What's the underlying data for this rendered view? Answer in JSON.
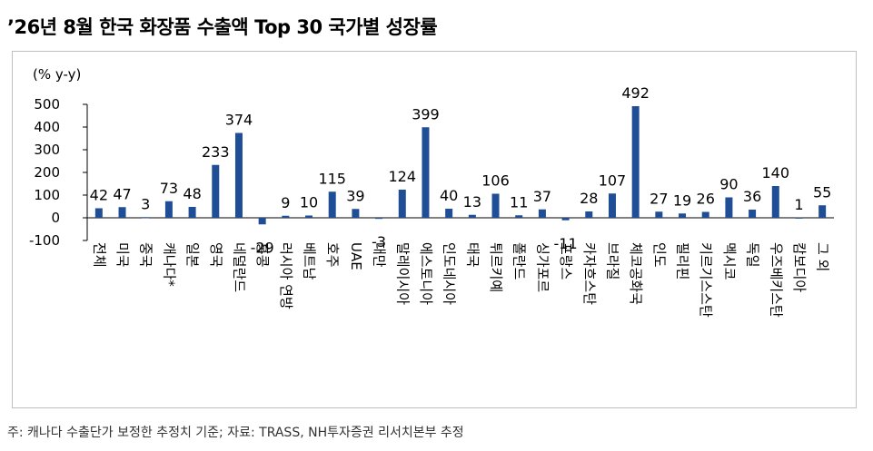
{
  "title": "’26년 8월 한국 화장품 수출액 Top 30 국가별 성장률",
  "footnote": "주: 캐나다 수출단가 보정한 추정치 기준; 자료: TRASS, NH투자증권 리서치본부 추정",
  "colors": {
    "bar": "#1f4e96",
    "frame": "#bfbfbf",
    "axis": "#000000"
  },
  "chart_data": {
    "type": "bar",
    "title": "’26년 8월 한국 화장품 수출액 Top 30 국가별 성장률",
    "ylabel": "(% y-y)",
    "xlabel": "",
    "ylim": [
      -100,
      500
    ],
    "yticks": [
      500,
      400,
      300,
      200,
      100,
      0,
      -100
    ],
    "grid": false,
    "categories": [
      "전체",
      "미국",
      "중국",
      "캐나다*",
      "일본",
      "영국",
      "네덜란드",
      "홍콩",
      "러시아 연방",
      "베트남",
      "호주",
      "UAE",
      "대만",
      "말레이시아",
      "에스토니아",
      "인도네시아",
      "태국",
      "튀르키예",
      "폴란드",
      "싱가포르",
      "프랑스",
      "카자흐스탄",
      "브라질",
      "체코공화국",
      "인도",
      "필리핀",
      "키르기스스탄",
      "멕시코",
      "독일",
      "우즈베키스탄",
      "캄보디아",
      "그 외"
    ],
    "values": [
      42,
      47,
      3,
      73,
      48,
      233,
      374,
      -29,
      9,
      10,
      115,
      39,
      -3,
      124,
      399,
      40,
      13,
      106,
      11,
      37,
      -11,
      28,
      107,
      492,
      27,
      19,
      26,
      90,
      36,
      140,
      1,
      55
    ]
  }
}
